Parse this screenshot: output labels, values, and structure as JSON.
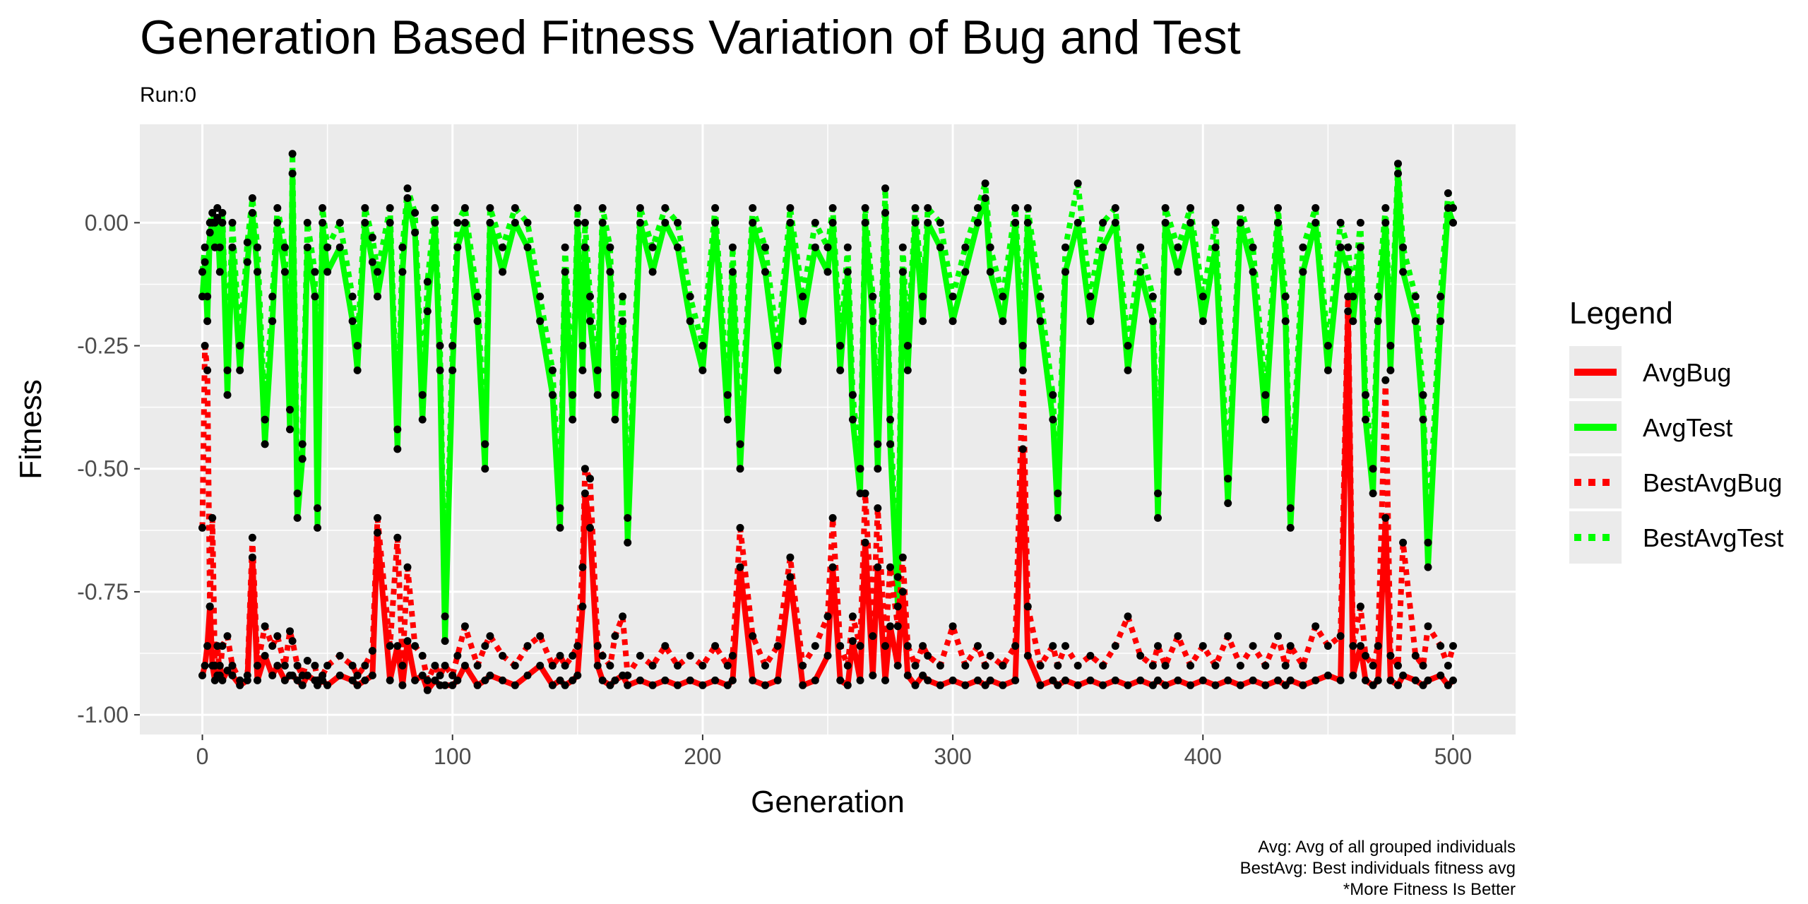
{
  "chart_data": {
    "type": "line",
    "title": "Generation Based Fitness Variation of Bug and Test",
    "subtitle": "Run:0",
    "xlabel": "Generation",
    "ylabel": "Fitness",
    "xlim": [
      -25,
      525
    ],
    "ylim": [
      -1.04,
      0.2
    ],
    "x_ticks": [
      0,
      100,
      200,
      300,
      400,
      500
    ],
    "x_tick_labels": [
      "0",
      "100",
      "200",
      "300",
      "400",
      "500"
    ],
    "y_ticks": [
      0.0,
      -0.25,
      -0.5,
      -0.75,
      -1.0
    ],
    "y_tick_labels": [
      "0.00",
      "-0.25",
      "-0.50",
      "-0.75",
      "-1.00"
    ],
    "grid": true,
    "points_shown": true,
    "legend": {
      "title": "Legend",
      "position": "right",
      "entries": [
        "AvgBug",
        "AvgTest",
        "BestAvgBug",
        "BestAvgTest"
      ]
    },
    "caption": [
      "Avg: Avg of all grouped individuals",
      "BestAvg: Best individuals fitness avg",
      "*More Fitness Is Better"
    ],
    "x": [
      0,
      1,
      2,
      3,
      4,
      5,
      6,
      7,
      8,
      10,
      12,
      15,
      18,
      20,
      22,
      25,
      28,
      30,
      33,
      35,
      36,
      38,
      40,
      42,
      45,
      46,
      48,
      50,
      55,
      60,
      62,
      65,
      68,
      70,
      75,
      78,
      80,
      82,
      85,
      88,
      90,
      93,
      95,
      97,
      100,
      102,
      105,
      110,
      113,
      115,
      120,
      125,
      130,
      135,
      140,
      143,
      145,
      148,
      150,
      152,
      153,
      155,
      158,
      160,
      163,
      165,
      168,
      170,
      175,
      180,
      185,
      190,
      195,
      200,
      205,
      210,
      212,
      215,
      220,
      225,
      230,
      235,
      240,
      245,
      250,
      252,
      255,
      258,
      260,
      263,
      265,
      268,
      270,
      273,
      275,
      278,
      280,
      282,
      285,
      288,
      290,
      295,
      300,
      305,
      310,
      313,
      315,
      320,
      325,
      328,
      330,
      335,
      340,
      342,
      345,
      350,
      355,
      360,
      365,
      370,
      375,
      380,
      382,
      385,
      390,
      395,
      400,
      405,
      410,
      415,
      420,
      425,
      430,
      433,
      435,
      440,
      445,
      450,
      455,
      458,
      460,
      463,
      465,
      468,
      470,
      473,
      475,
      478,
      480,
      485,
      488,
      490,
      495,
      498,
      500
    ],
    "series": [
      {
        "name": "AvgBug",
        "values": [
          -0.92,
          -0.9,
          -0.86,
          -0.78,
          -0.9,
          -0.93,
          -0.92,
          -0.9,
          -0.93,
          -0.91,
          -0.92,
          -0.94,
          -0.93,
          -0.68,
          -0.93,
          -0.88,
          -0.92,
          -0.9,
          -0.93,
          -0.92,
          -0.92,
          -0.93,
          -0.94,
          -0.92,
          -0.93,
          -0.94,
          -0.93,
          -0.94,
          -0.92,
          -0.93,
          -0.94,
          -0.93,
          -0.92,
          -0.63,
          -0.93,
          -0.86,
          -0.94,
          -0.85,
          -0.93,
          -0.92,
          -0.95,
          -0.93,
          -0.94,
          -0.94,
          -0.94,
          -0.93,
          -0.9,
          -0.94,
          -0.93,
          -0.92,
          -0.93,
          -0.94,
          -0.92,
          -0.9,
          -0.94,
          -0.93,
          -0.94,
          -0.93,
          -0.92,
          -0.78,
          -0.55,
          -0.62,
          -0.9,
          -0.93,
          -0.94,
          -0.93,
          -0.92,
          -0.94,
          -0.93,
          -0.94,
          -0.93,
          -0.94,
          -0.93,
          -0.94,
          -0.93,
          -0.94,
          -0.93,
          -0.7,
          -0.93,
          -0.94,
          -0.93,
          -0.72,
          -0.94,
          -0.93,
          -0.88,
          -0.7,
          -0.93,
          -0.94,
          -0.85,
          -0.93,
          -0.65,
          -0.92,
          -0.7,
          -0.93,
          -0.82,
          -0.9,
          -0.75,
          -0.92,
          -0.94,
          -0.92,
          -0.93,
          -0.94,
          -0.93,
          -0.94,
          -0.93,
          -0.94,
          -0.93,
          -0.94,
          -0.93,
          -0.46,
          -0.88,
          -0.94,
          -0.93,
          -0.94,
          -0.93,
          -0.94,
          -0.93,
          -0.94,
          -0.93,
          -0.94,
          -0.93,
          -0.94,
          -0.93,
          -0.94,
          -0.93,
          -0.94,
          -0.93,
          -0.94,
          -0.93,
          -0.94,
          -0.93,
          -0.94,
          -0.93,
          -0.94,
          -0.93,
          -0.94,
          -0.93,
          -0.92,
          -0.93,
          -0.18,
          -0.92,
          -0.86,
          -0.93,
          -0.94,
          -0.93,
          -0.6,
          -0.93,
          -0.94,
          -0.92,
          -0.93,
          -0.94,
          -0.93,
          -0.92,
          -0.94,
          -0.93
        ]
      },
      {
        "name": "AvgTest",
        "values": [
          -0.15,
          -0.08,
          -0.2,
          -0.02,
          0.0,
          -0.05,
          0.01,
          -0.1,
          0.0,
          -0.35,
          -0.05,
          -0.3,
          -0.08,
          0.02,
          -0.1,
          -0.45,
          -0.2,
          0.0,
          -0.1,
          -0.42,
          0.1,
          -0.6,
          -0.48,
          -0.05,
          -0.15,
          -0.62,
          0.0,
          -0.1,
          -0.05,
          -0.2,
          -0.3,
          0.0,
          -0.08,
          -0.15,
          0.0,
          -0.46,
          -0.1,
          0.05,
          -0.02,
          -0.4,
          -0.18,
          0.0,
          -0.3,
          -0.85,
          -0.3,
          -0.05,
          0.0,
          -0.2,
          -0.5,
          0.0,
          -0.1,
          0.0,
          -0.05,
          -0.2,
          -0.35,
          -0.62,
          -0.1,
          -0.4,
          0.0,
          -0.3,
          -0.05,
          -0.2,
          -0.35,
          0.0,
          -0.1,
          -0.4,
          -0.2,
          -0.65,
          0.0,
          -0.1,
          0.0,
          -0.05,
          -0.2,
          -0.3,
          0.0,
          -0.4,
          -0.1,
          -0.5,
          0.0,
          -0.1,
          -0.3,
          0.0,
          -0.2,
          -0.05,
          -0.1,
          0.0,
          -0.3,
          -0.1,
          -0.4,
          -0.55,
          0.0,
          -0.2,
          -0.5,
          0.02,
          -0.45,
          -0.78,
          -0.1,
          -0.3,
          0.0,
          -0.2,
          0.0,
          -0.05,
          -0.2,
          -0.1,
          0.0,
          0.05,
          -0.1,
          -0.2,
          0.0,
          -0.3,
          0.0,
          -0.2,
          -0.4,
          -0.6,
          -0.1,
          0.0,
          -0.2,
          -0.05,
          0.0,
          -0.3,
          -0.1,
          -0.2,
          -0.6,
          0.0,
          -0.1,
          0.0,
          -0.2,
          -0.05,
          -0.57,
          0.0,
          -0.1,
          -0.4,
          0.0,
          -0.2,
          -0.62,
          -0.1,
          0.0,
          -0.3,
          -0.05,
          -0.1,
          -0.2,
          -0.05,
          -0.4,
          -0.55,
          -0.2,
          0.0,
          -0.3,
          0.1,
          -0.1,
          -0.2,
          -0.4,
          -0.7,
          -0.2,
          0.03,
          0.0
        ]
      },
      {
        "name": "BestAvgBug",
        "values": [
          -0.62,
          -0.25,
          -0.3,
          -0.78,
          -0.6,
          -0.9,
          -0.86,
          -0.92,
          -0.86,
          -0.84,
          -0.9,
          -0.93,
          -0.92,
          -0.64,
          -0.9,
          -0.82,
          -0.86,
          -0.84,
          -0.9,
          -0.83,
          -0.85,
          -0.9,
          -0.92,
          -0.89,
          -0.9,
          -0.93,
          -0.92,
          -0.9,
          -0.88,
          -0.9,
          -0.92,
          -0.9,
          -0.87,
          -0.6,
          -0.86,
          -0.64,
          -0.9,
          -0.7,
          -0.86,
          -0.88,
          -0.93,
          -0.9,
          -0.92,
          -0.9,
          -0.92,
          -0.88,
          -0.82,
          -0.9,
          -0.86,
          -0.84,
          -0.88,
          -0.9,
          -0.86,
          -0.84,
          -0.9,
          -0.88,
          -0.9,
          -0.88,
          -0.86,
          -0.7,
          -0.5,
          -0.52,
          -0.86,
          -0.88,
          -0.9,
          -0.84,
          -0.8,
          -0.92,
          -0.88,
          -0.9,
          -0.86,
          -0.9,
          -0.88,
          -0.9,
          -0.86,
          -0.9,
          -0.88,
          -0.62,
          -0.84,
          -0.9,
          -0.86,
          -0.68,
          -0.9,
          -0.86,
          -0.8,
          -0.6,
          -0.86,
          -0.9,
          -0.8,
          -0.86,
          -0.55,
          -0.84,
          -0.58,
          -0.86,
          -0.7,
          -0.82,
          -0.68,
          -0.86,
          -0.9,
          -0.86,
          -0.88,
          -0.9,
          -0.82,
          -0.9,
          -0.86,
          -0.9,
          -0.88,
          -0.9,
          -0.86,
          -0.3,
          -0.78,
          -0.9,
          -0.86,
          -0.9,
          -0.86,
          -0.9,
          -0.88,
          -0.9,
          -0.86,
          -0.8,
          -0.88,
          -0.9,
          -0.86,
          -0.9,
          -0.84,
          -0.9,
          -0.86,
          -0.9,
          -0.84,
          -0.9,
          -0.86,
          -0.9,
          -0.84,
          -0.9,
          -0.86,
          -0.9,
          -0.82,
          -0.86,
          -0.84,
          -0.15,
          -0.86,
          -0.78,
          -0.88,
          -0.9,
          -0.86,
          -0.32,
          -0.88,
          -0.9,
          -0.65,
          -0.88,
          -0.9,
          -0.82,
          -0.86,
          -0.9,
          -0.86
        ]
      },
      {
        "name": "BestAvgTest",
        "values": [
          -0.1,
          -0.05,
          -0.15,
          0.0,
          0.02,
          0.0,
          0.03,
          -0.05,
          0.02,
          -0.3,
          0.0,
          -0.25,
          -0.04,
          0.05,
          -0.05,
          -0.4,
          -0.15,
          0.03,
          -0.05,
          -0.38,
          0.14,
          -0.55,
          -0.45,
          0.0,
          -0.1,
          -0.58,
          0.03,
          -0.05,
          0.0,
          -0.15,
          -0.25,
          0.03,
          -0.03,
          -0.1,
          0.03,
          -0.42,
          -0.05,
          0.07,
          0.02,
          -0.35,
          -0.12,
          0.03,
          -0.25,
          -0.8,
          -0.25,
          0.0,
          0.03,
          -0.15,
          -0.45,
          0.03,
          -0.05,
          0.03,
          0.0,
          -0.15,
          -0.3,
          -0.58,
          -0.05,
          -0.35,
          0.03,
          -0.25,
          0.0,
          -0.15,
          -0.3,
          0.03,
          -0.05,
          -0.35,
          -0.15,
          -0.6,
          0.03,
          -0.05,
          0.03,
          0.0,
          -0.15,
          -0.25,
          0.03,
          -0.35,
          -0.05,
          -0.45,
          0.03,
          -0.05,
          -0.25,
          0.03,
          -0.15,
          0.0,
          -0.05,
          0.03,
          -0.25,
          -0.05,
          -0.35,
          -0.5,
          0.03,
          -0.15,
          -0.45,
          0.07,
          -0.4,
          -0.72,
          -0.05,
          -0.25,
          0.03,
          -0.15,
          0.03,
          0.0,
          -0.15,
          -0.05,
          0.03,
          0.08,
          -0.05,
          -0.15,
          0.03,
          -0.25,
          0.03,
          -0.15,
          -0.35,
          -0.55,
          -0.05,
          0.08,
          -0.15,
          0.0,
          0.03,
          -0.25,
          -0.05,
          -0.15,
          -0.55,
          0.03,
          -0.05,
          0.03,
          -0.15,
          0.0,
          -0.52,
          0.03,
          -0.05,
          -0.35,
          0.03,
          -0.15,
          -0.58,
          -0.05,
          0.03,
          -0.25,
          0.0,
          -0.05,
          -0.15,
          0.0,
          -0.35,
          -0.5,
          -0.15,
          0.03,
          -0.25,
          0.12,
          -0.05,
          -0.15,
          -0.35,
          -0.65,
          -0.15,
          0.06,
          0.03
        ]
      }
    ]
  },
  "colors": {
    "AvgBug": "#ff0000",
    "AvgTest": "#00ff00",
    "BestAvgBug": "#ff0000",
    "BestAvgTest": "#00ff00",
    "points": "#000000",
    "panel": "#ebebeb",
    "grid": "#ffffff"
  }
}
